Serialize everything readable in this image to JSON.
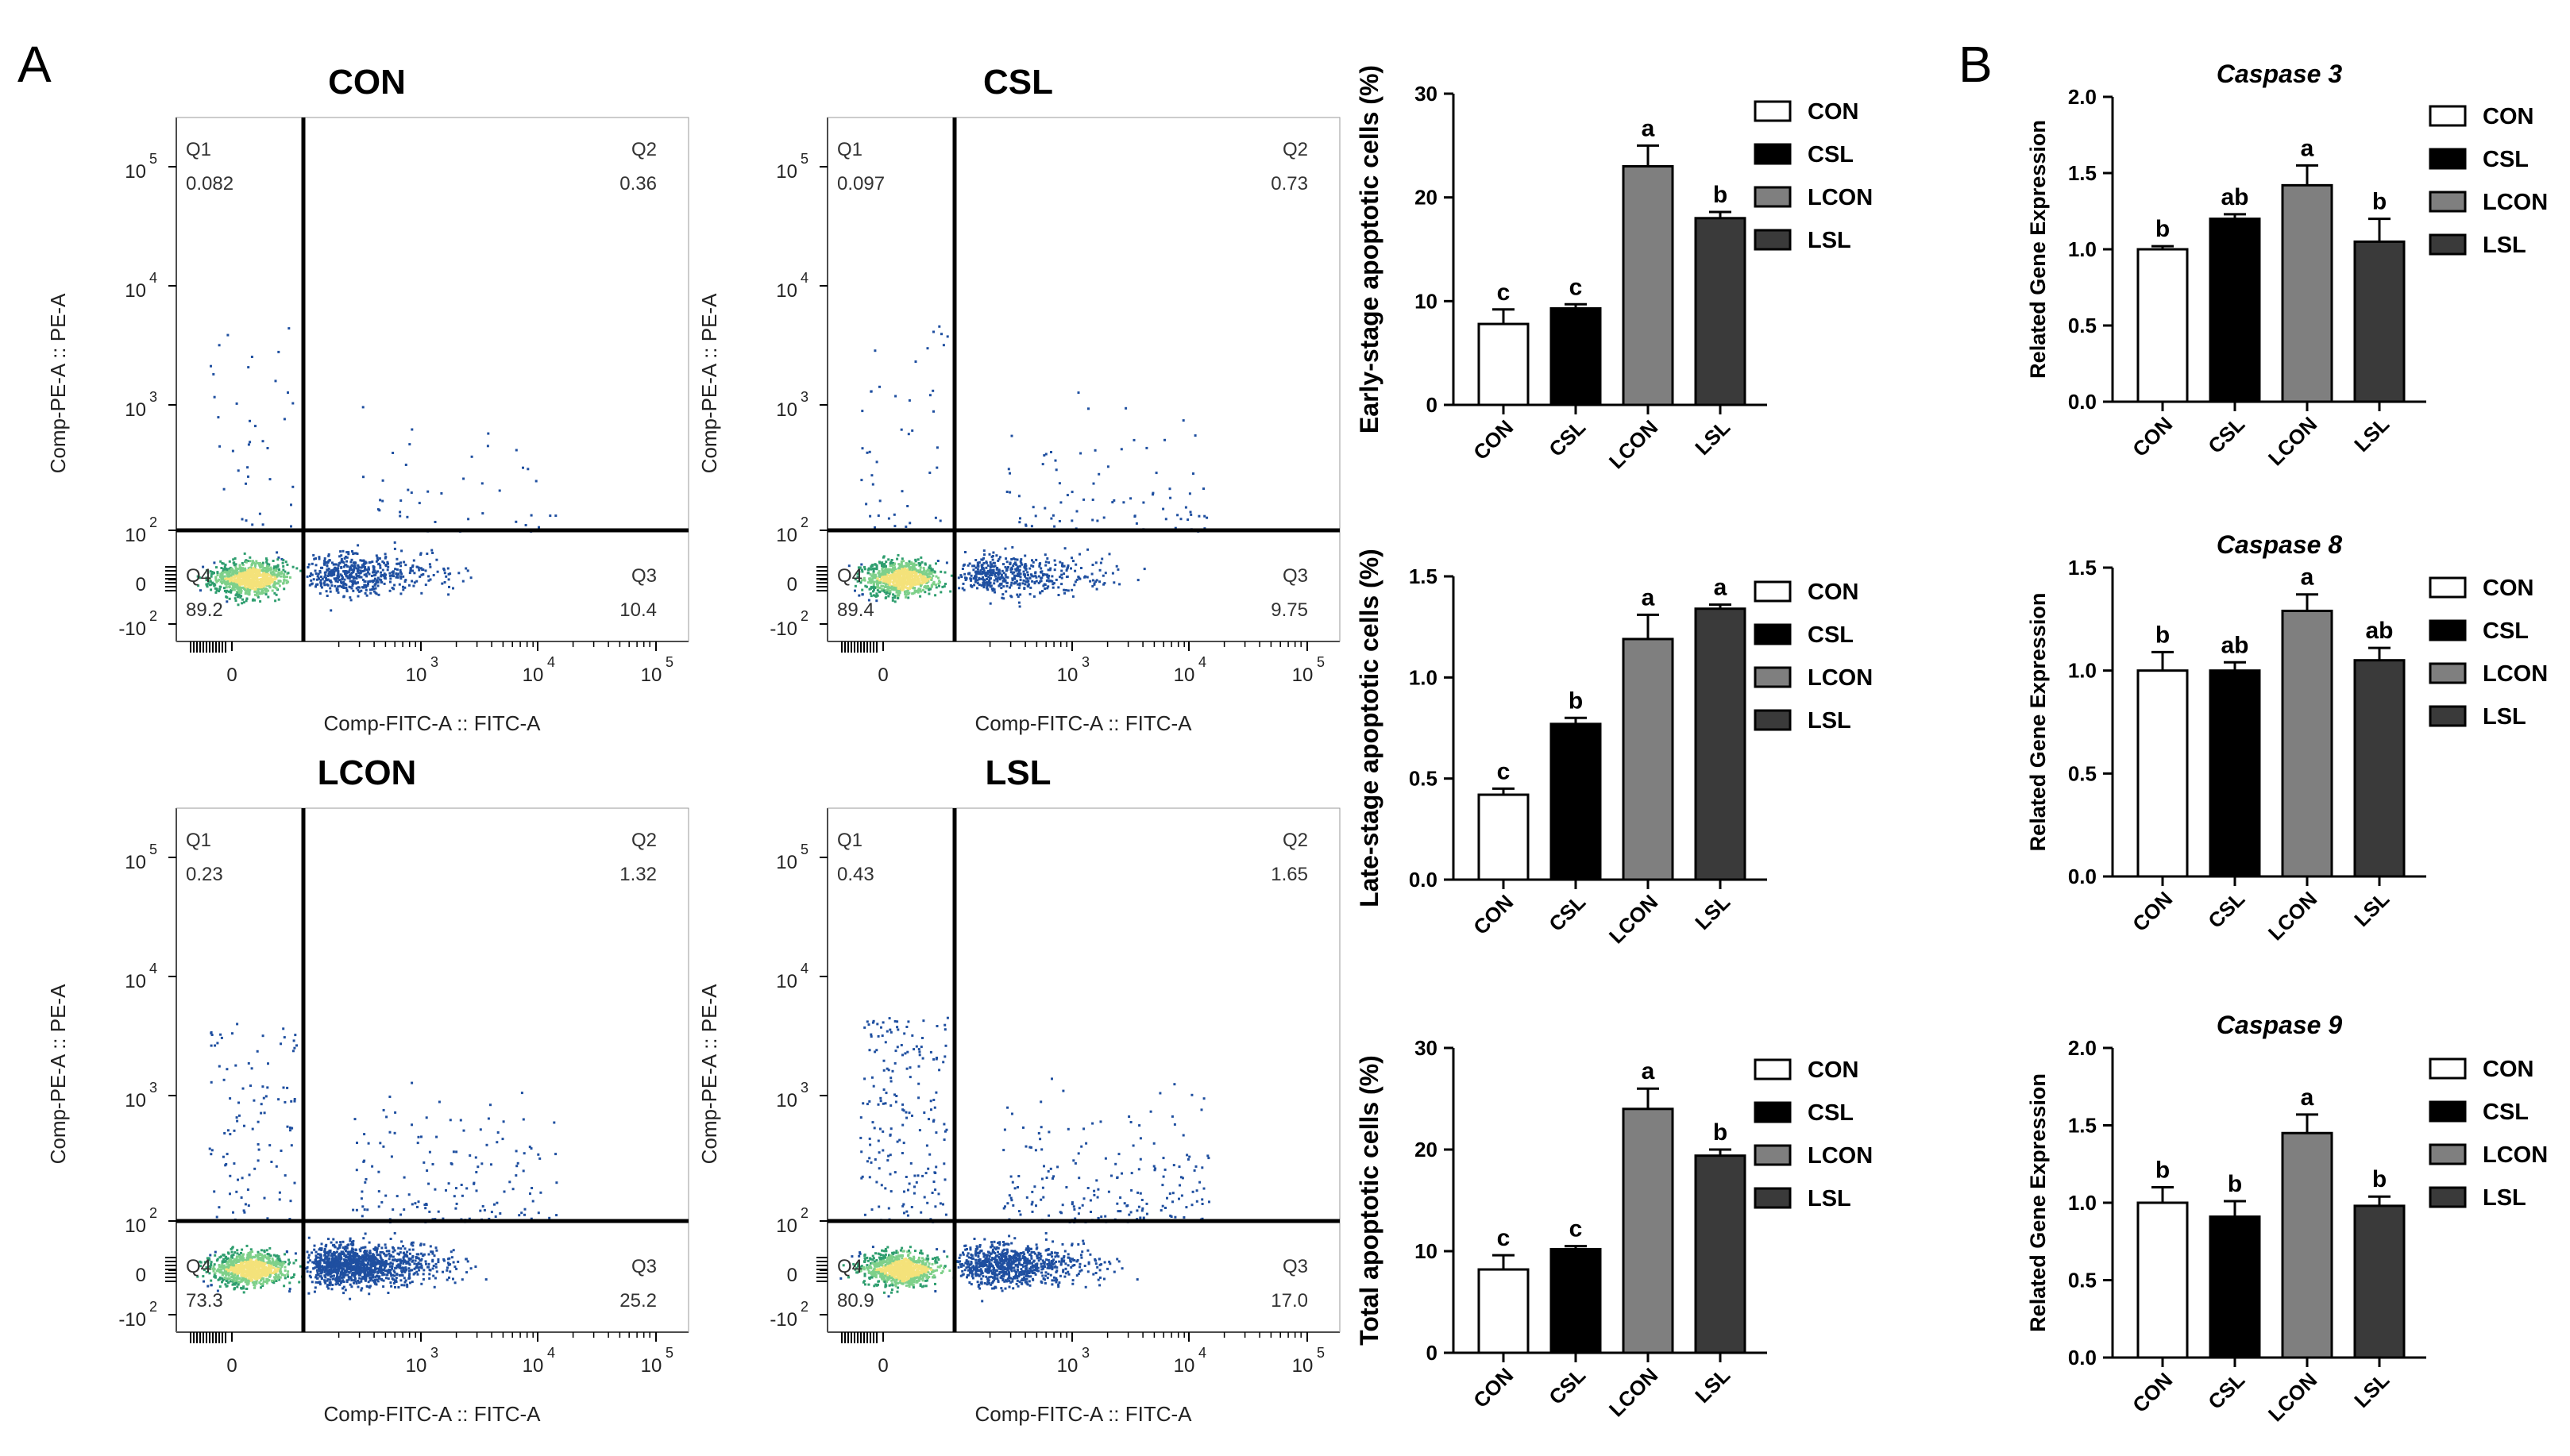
{
  "panel_labels": {
    "a": "A",
    "b": "B"
  },
  "colors": {
    "CON": "#ffffff",
    "CSL": "#000000",
    "LCON": "#7f7f7f",
    "LSL": "#3a3a3a",
    "line": "#000000"
  },
  "legend": [
    "CON",
    "CSL",
    "LCON",
    "LSL"
  ],
  "chart_data": [
    {
      "id": "flow-con",
      "type": "scatter",
      "title": "CON",
      "xlabel": "Comp-FITC-A :: FITC-A",
      "ylabel": "Comp-PE-A :: PE-A",
      "x_ticks": [
        "0",
        "10",
        "10",
        "10"
      ],
      "x_tick_exps": [
        "",
        "3",
        "4",
        "5"
      ],
      "y_ticks": [
        "10",
        "10",
        "10",
        "10",
        "0",
        "-10"
      ],
      "y_tick_exps": [
        "5",
        "4",
        "3",
        "2",
        "",
        "2"
      ],
      "quadrants": [
        {
          "name": "Q1",
          "value": "0.082"
        },
        {
          "name": "Q2",
          "value": "0.36"
        },
        {
          "name": "Q3",
          "value": "10.4"
        },
        {
          "name": "Q4",
          "value": "89.2"
        }
      ]
    },
    {
      "id": "flow-csl",
      "type": "scatter",
      "title": "CSL",
      "xlabel": "Comp-FITC-A :: FITC-A",
      "ylabel": "Comp-PE-A :: PE-A",
      "x_ticks": [
        "0",
        "10",
        "10",
        "10"
      ],
      "x_tick_exps": [
        "",
        "3",
        "4",
        "5"
      ],
      "y_ticks": [
        "10",
        "10",
        "10",
        "10",
        "0",
        "-10"
      ],
      "y_tick_exps": [
        "5",
        "4",
        "3",
        "2",
        "",
        "2"
      ],
      "quadrants": [
        {
          "name": "Q1",
          "value": "0.097"
        },
        {
          "name": "Q2",
          "value": "0.73"
        },
        {
          "name": "Q3",
          "value": "9.75"
        },
        {
          "name": "Q4",
          "value": "89.4"
        }
      ]
    },
    {
      "id": "flow-lcon",
      "type": "scatter",
      "title": "LCON",
      "xlabel": "Comp-FITC-A :: FITC-A",
      "ylabel": "Comp-PE-A :: PE-A",
      "x_ticks": [
        "0",
        "10",
        "10",
        "10"
      ],
      "x_tick_exps": [
        "",
        "3",
        "4",
        "5"
      ],
      "y_ticks": [
        "10",
        "10",
        "10",
        "10",
        "0",
        "-10"
      ],
      "y_tick_exps": [
        "5",
        "4",
        "3",
        "2",
        "",
        "2"
      ],
      "quadrants": [
        {
          "name": "Q1",
          "value": "0.23"
        },
        {
          "name": "Q2",
          "value": "1.32"
        },
        {
          "name": "Q3",
          "value": "25.2"
        },
        {
          "name": "Q4",
          "value": "73.3"
        }
      ]
    },
    {
      "id": "flow-lsl",
      "type": "scatter",
      "title": "LSL",
      "xlabel": "Comp-FITC-A :: FITC-A",
      "ylabel": "Comp-PE-A :: PE-A",
      "x_ticks": [
        "0",
        "10",
        "10",
        "10"
      ],
      "x_tick_exps": [
        "",
        "3",
        "4",
        "5"
      ],
      "y_ticks": [
        "10",
        "10",
        "10",
        "10",
        "0",
        "-10"
      ],
      "y_tick_exps": [
        "5",
        "4",
        "3",
        "2",
        "",
        "2"
      ],
      "quadrants": [
        {
          "name": "Q1",
          "value": "0.43"
        },
        {
          "name": "Q2",
          "value": "1.65"
        },
        {
          "name": "Q3",
          "value": "17.0"
        },
        {
          "name": "Q4",
          "value": "80.9"
        }
      ]
    },
    {
      "id": "early",
      "type": "bar",
      "title": "",
      "ylabel": "Early-stage apoptotic cells (%)",
      "categories": [
        "CON",
        "CSL",
        "LCON",
        "LSL"
      ],
      "values": [
        7.8,
        9.3,
        23.0,
        18.0
      ],
      "errors": [
        1.4,
        0.4,
        2.0,
        0.6
      ],
      "letters": [
        "c",
        "c",
        "a",
        "b"
      ],
      "ylim": [
        0,
        30
      ],
      "yticks": [
        0,
        10,
        20,
        30
      ],
      "tick_labels": [
        "0",
        "10",
        "20",
        "30"
      ]
    },
    {
      "id": "late",
      "type": "bar",
      "title": "",
      "ylabel": "Late-stage apoptotic cells (%)",
      "categories": [
        "CON",
        "CSL",
        "LCON",
        "LSL"
      ],
      "values": [
        0.42,
        0.77,
        1.19,
        1.34
      ],
      "errors": [
        0.03,
        0.03,
        0.12,
        0.02
      ],
      "letters": [
        "c",
        "b",
        "a",
        "a"
      ],
      "ylim": [
        0,
        1.5
      ],
      "yticks": [
        0,
        0.5,
        1.0,
        1.5
      ],
      "tick_labels": [
        "0.0",
        "0.5",
        "1.0",
        "1.5"
      ]
    },
    {
      "id": "total",
      "type": "bar",
      "title": "",
      "ylabel": "Total apoptotic cells (%)",
      "categories": [
        "CON",
        "CSL",
        "LCON",
        "LSL"
      ],
      "values": [
        8.2,
        10.2,
        24.0,
        19.4
      ],
      "errors": [
        1.4,
        0.3,
        2.0,
        0.6
      ],
      "letters": [
        "c",
        "c",
        "a",
        "b"
      ],
      "ylim": [
        0,
        30
      ],
      "yticks": [
        0,
        10,
        20,
        30
      ],
      "tick_labels": [
        "0",
        "10",
        "20",
        "30"
      ]
    },
    {
      "id": "casp3",
      "type": "bar",
      "title": "Caspase 3",
      "ylabel": "Related Gene Expression",
      "categories": [
        "CON",
        "CSL",
        "LCON",
        "LSL"
      ],
      "values": [
        1.0,
        1.2,
        1.42,
        1.05
      ],
      "errors": [
        0.02,
        0.03,
        0.13,
        0.15
      ],
      "letters": [
        "b",
        "ab",
        "a",
        "b"
      ],
      "ylim": [
        0,
        2.0
      ],
      "yticks": [
        0,
        0.5,
        1.0,
        1.5,
        2.0
      ],
      "tick_labels": [
        "0.0",
        "0.5",
        "1.0",
        "1.5",
        "2.0"
      ]
    },
    {
      "id": "casp8",
      "type": "bar",
      "title": "Caspase 8",
      "ylabel": "Related Gene Expression",
      "categories": [
        "CON",
        "CSL",
        "LCON",
        "LSL"
      ],
      "values": [
        1.0,
        1.0,
        1.29,
        1.05
      ],
      "errors": [
        0.09,
        0.04,
        0.08,
        0.06
      ],
      "letters": [
        "b",
        "ab",
        "a",
        "ab"
      ],
      "ylim": [
        0,
        1.5
      ],
      "yticks": [
        0,
        0.5,
        1.0,
        1.5
      ],
      "tick_labels": [
        "0.0",
        "0.5",
        "1.0",
        "1.5"
      ]
    },
    {
      "id": "casp9",
      "type": "bar",
      "title": "Caspase 9",
      "ylabel": "Related Gene Expression",
      "categories": [
        "CON",
        "CSL",
        "LCON",
        "LSL"
      ],
      "values": [
        1.0,
        0.91,
        1.45,
        0.98
      ],
      "errors": [
        0.1,
        0.1,
        0.12,
        0.06
      ],
      "letters": [
        "b",
        "b",
        "a",
        "b"
      ],
      "ylim": [
        0,
        2.0
      ],
      "yticks": [
        0,
        0.5,
        1.0,
        1.5,
        2.0
      ],
      "tick_labels": [
        "0.0",
        "0.5",
        "1.0",
        "1.5",
        "2.0"
      ]
    }
  ]
}
